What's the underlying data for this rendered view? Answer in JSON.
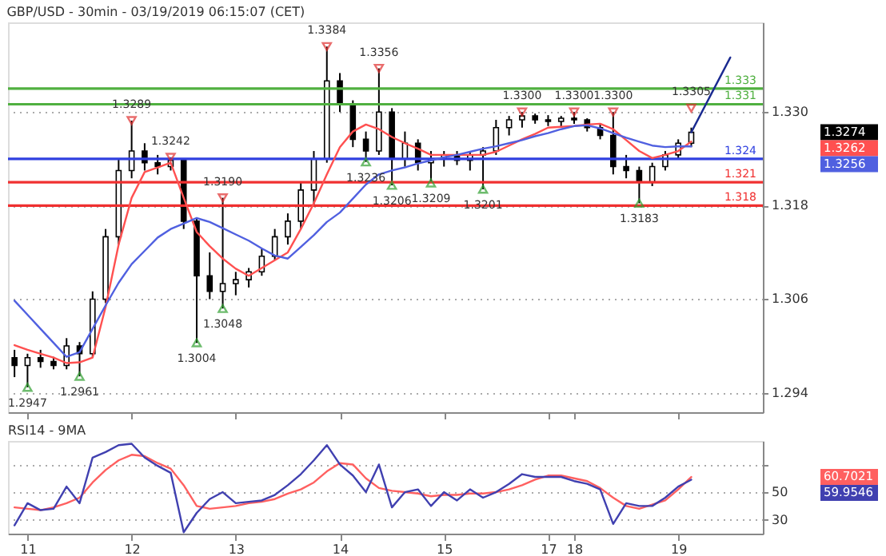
{
  "chart_data": [
    {
      "type": "candlestick",
      "title": "GBP/USD - 30min - 03/19/2019 06:15:07 (CET)",
      "categories": [
        null,
        "11",
        null,
        null,
        null,
        null,
        null,
        null,
        null,
        "12",
        null,
        null,
        null,
        null,
        null,
        null,
        null,
        "13",
        null,
        null,
        null,
        null,
        null,
        null,
        null,
        "14",
        null,
        null,
        null,
        null,
        null,
        null,
        null,
        "15",
        null,
        null,
        null,
        null,
        null,
        null,
        null,
        "17",
        null,
        "18",
        null,
        null,
        null,
        null,
        null,
        null,
        null,
        "19",
        null,
        null,
        null,
        null,
        null,
        null
      ],
      "ohlc": [
        [
          1.2985,
          1.2995,
          1.296,
          1.2975
        ],
        [
          1.2975,
          1.299,
          1.2947,
          1.2985
        ],
        [
          1.2985,
          1.2995,
          1.2972,
          1.298
        ],
        [
          1.298,
          1.2986,
          1.297,
          1.2975
        ],
        [
          1.2975,
          1.301,
          1.297,
          1.3
        ],
        [
          1.3,
          1.3005,
          1.2961,
          1.299
        ],
        [
          1.299,
          1.307,
          1.2985,
          1.306
        ],
        [
          1.306,
          1.315,
          1.3055,
          1.314
        ],
        [
          1.314,
          1.324,
          1.313,
          1.3225
        ],
        [
          1.3225,
          1.3289,
          1.3215,
          1.325
        ],
        [
          1.325,
          1.326,
          1.3225,
          1.3235
        ],
        [
          1.3235,
          1.3245,
          1.322,
          1.323
        ],
        [
          1.323,
          1.3242,
          1.3225,
          1.3238
        ],
        [
          1.3238,
          1.324,
          1.315,
          1.316
        ],
        [
          1.316,
          1.3165,
          1.3004,
          1.309
        ],
        [
          1.309,
          1.312,
          1.306,
          1.307
        ],
        [
          1.307,
          1.319,
          1.3048,
          1.308
        ],
        [
          1.308,
          1.3095,
          1.3065,
          1.3085
        ],
        [
          1.3085,
          1.31,
          1.3075,
          1.3095
        ],
        [
          1.3095,
          1.3125,
          1.309,
          1.3115
        ],
        [
          1.3115,
          1.315,
          1.311,
          1.314
        ],
        [
          1.314,
          1.317,
          1.313,
          1.316
        ],
        [
          1.316,
          1.321,
          1.315,
          1.32
        ],
        [
          1.32,
          1.325,
          1.318,
          1.324
        ],
        [
          1.324,
          1.3384,
          1.3235,
          1.334
        ],
        [
          1.334,
          1.335,
          1.33,
          1.331
        ],
        [
          1.331,
          1.3315,
          1.3255,
          1.3265
        ],
        [
          1.3265,
          1.3275,
          1.3236,
          1.325
        ],
        [
          1.325,
          1.3356,
          1.3245,
          1.33
        ],
        [
          1.33,
          1.3305,
          1.3206,
          1.324
        ],
        [
          1.324,
          1.3275,
          1.323,
          1.326
        ],
        [
          1.326,
          1.3265,
          1.3225,
          1.3235
        ],
        [
          1.3235,
          1.325,
          1.3209,
          1.324
        ],
        [
          1.324,
          1.325,
          1.323,
          1.3245
        ],
        [
          1.3245,
          1.325,
          1.3232,
          1.3238
        ],
        [
          1.3238,
          1.325,
          1.3225,
          1.3245
        ],
        [
          1.3245,
          1.3255,
          1.3201,
          1.325
        ],
        [
          1.325,
          1.329,
          1.3245,
          1.328
        ],
        [
          1.328,
          1.3295,
          1.327,
          1.329
        ],
        [
          1.329,
          1.33,
          1.328,
          1.3295
        ],
        [
          1.3295,
          1.3298,
          1.3285,
          1.329
        ],
        [
          1.329,
          1.3296,
          1.3282,
          1.3288
        ],
        [
          1.3288,
          1.3295,
          1.328,
          1.3292
        ],
        [
          1.3292,
          1.33,
          1.3285,
          1.329
        ],
        [
          1.329,
          1.3292,
          1.3275,
          1.328
        ],
        [
          1.328,
          1.3285,
          1.3265,
          1.327
        ],
        [
          1.327,
          1.33,
          1.322,
          1.323
        ],
        [
          1.323,
          1.3245,
          1.3215,
          1.3225
        ],
        [
          1.3225,
          1.323,
          1.3183,
          1.321
        ],
        [
          1.321,
          1.3235,
          1.3205,
          1.323
        ],
        [
          1.323,
          1.325,
          1.3225,
          1.3245
        ],
        [
          1.3245,
          1.3265,
          1.324,
          1.326
        ],
        [
          1.326,
          1.328,
          1.3255,
          1.3274
        ],
        null,
        null,
        null,
        null,
        null
      ],
      "series": [
        {
          "type": "line",
          "color": "#ff5050",
          "values": [
            1.3001,
            1.2995,
            1.299,
            1.2985,
            1.2978,
            1.2979,
            1.2985,
            1.305,
            1.313,
            1.319,
            1.3223,
            1.3229,
            1.3235,
            1.319,
            1.3146,
            1.3128,
            1.3112,
            1.3099,
            1.309,
            1.31,
            1.311,
            1.312,
            1.315,
            1.3183,
            1.322,
            1.3255,
            1.3275,
            1.3284,
            1.3278,
            1.3268,
            1.326,
            1.3253,
            1.3245,
            1.3245,
            1.3245,
            1.3245,
            1.3245,
            1.3249,
            1.3257,
            1.3265,
            1.3272,
            1.328,
            1.3281,
            1.3282,
            1.3284,
            1.3285,
            1.3278,
            1.3264,
            1.325,
            1.3241,
            1.3245,
            1.325,
            1.3262,
            null,
            null,
            null,
            null,
            null
          ]
        },
        {
          "type": "line",
          "color": "#5060e0",
          "values": [
            1.3058,
            1.304,
            1.3022,
            1.3004,
            1.2986,
            1.2992,
            1.3022,
            1.3052,
            1.3081,
            1.3105,
            1.3122,
            1.3139,
            1.315,
            1.3157,
            1.3164,
            1.3159,
            1.3151,
            1.3143,
            1.3135,
            1.3125,
            1.3116,
            1.3112,
            1.3127,
            1.3142,
            1.3159,
            1.3171,
            1.3189,
            1.3207,
            1.322,
            1.3225,
            1.3229,
            1.3234,
            1.3238,
            1.3242,
            1.3245,
            1.3249,
            1.3253,
            1.3256,
            1.326,
            1.3264,
            1.3269,
            1.3273,
            1.3278,
            1.3282,
            1.3283,
            1.3279,
            1.3273,
            1.3267,
            1.3262,
            1.3257,
            1.3255,
            1.3256,
            1.3256,
            null,
            null,
            null,
            null,
            null
          ]
        },
        {
          "type": "line",
          "color": "#1a2a90",
          "values": [
            null,
            null,
            null,
            null,
            null,
            null,
            null,
            null,
            null,
            null,
            null,
            null,
            null,
            null,
            null,
            null,
            null,
            null,
            null,
            null,
            null,
            null,
            null,
            null,
            null,
            null,
            null,
            null,
            null,
            null,
            null,
            null,
            null,
            null,
            null,
            null,
            null,
            null,
            null,
            null,
            null,
            null,
            null,
            null,
            null,
            null,
            null,
            null,
            null,
            null,
            null,
            null,
            1.3274,
            null,
            null,
            1.337,
            null,
            null
          ]
        },
        {
          "type": "scatter",
          "color": "#e03030",
          "marker": "triangle",
          "values": [
            null,
            null,
            null,
            null,
            null,
            null,
            null,
            null,
            null,
            1.3289,
            null,
            null,
            1.3242,
            null,
            null,
            null,
            1.319,
            null,
            null,
            null,
            null,
            null,
            null,
            null,
            1.3384,
            null,
            null,
            null,
            1.3356,
            null,
            null,
            null,
            null,
            null,
            null,
            null,
            null,
            null,
            null,
            1.33,
            null,
            null,
            null,
            1.33,
            null,
            null,
            1.33,
            null,
            null,
            null,
            null,
            null,
            1.3305,
            null,
            null,
            null,
            null,
            null
          ],
          "value_labels": [
            null,
            null,
            null,
            null,
            null,
            null,
            null,
            null,
            null,
            "1.3289",
            null,
            null,
            "1.3242",
            null,
            null,
            null,
            "1.3190",
            null,
            null,
            null,
            null,
            null,
            null,
            null,
            "1.3384",
            null,
            null,
            null,
            "1.3356",
            null,
            null,
            null,
            null,
            null,
            null,
            null,
            null,
            null,
            null,
            "1.3300",
            null,
            null,
            null,
            "1.3300",
            null,
            null,
            "1.3300",
            null,
            null,
            null,
            null,
            null,
            "1.3305",
            null,
            null,
            null,
            null,
            null
          ]
        },
        {
          "type": "scatter",
          "color": "#30a030",
          "marker": "triangle",
          "values": [
            null,
            1.2947,
            null,
            null,
            null,
            1.2961,
            null,
            null,
            null,
            null,
            null,
            null,
            null,
            null,
            1.3004,
            null,
            1.3048,
            null,
            null,
            null,
            null,
            null,
            null,
            null,
            null,
            null,
            null,
            1.3236,
            null,
            1.3206,
            null,
            null,
            1.3209,
            null,
            null,
            null,
            1.3201,
            null,
            null,
            null,
            null,
            null,
            null,
            null,
            null,
            null,
            null,
            null,
            1.3183,
            null,
            null,
            null,
            null,
            null,
            null,
            null,
            null,
            null
          ],
          "value_labels": [
            null,
            "1.2947",
            null,
            null,
            null,
            "1.2961",
            null,
            null,
            null,
            null,
            null,
            null,
            null,
            null,
            "1.3004",
            null,
            "1.3048",
            null,
            null,
            null,
            null,
            null,
            null,
            null,
            null,
            null,
            null,
            "1.3236",
            null,
            "1.3206",
            null,
            null,
            "1.3209",
            null,
            null,
            null,
            "1.3201",
            null,
            null,
            null,
            null,
            null,
            null,
            null,
            null,
            null,
            null,
            null,
            "1.3183",
            null,
            null,
            null,
            null,
            null,
            null,
            null,
            null,
            null
          ]
        }
      ],
      "ylim": [
        1.2915,
        1.3415
      ],
      "yticks": [
        {
          "value": 1.294,
          "label": "1.294"
        },
        {
          "value": 1.306,
          "label": "1.306"
        },
        {
          "value": 1.318,
          "label": "1.318"
        },
        {
          "value": 1.33,
          "label": "1.330"
        }
      ],
      "grid": "y",
      "tick_labels": "y",
      "ref_lines": [
        {
          "axis": "y",
          "value": 1.333,
          "label": "1.333",
          "color": "#50b040"
        },
        {
          "axis": "y",
          "value": 1.331,
          "label": "1.331",
          "color": "#50b040"
        },
        {
          "axis": "y",
          "value": 1.324,
          "label": "1.324",
          "color": "#3040e0"
        },
        {
          "axis": "y",
          "value": 1.321,
          "label": "1.321",
          "color": "#f03030"
        },
        {
          "axis": "y",
          "value": 1.318,
          "label": "1.318",
          "color": "#f03030"
        }
      ],
      "annotations": [
        "1.3274",
        "1.3262",
        "1.3256"
      ]
    },
    {
      "type": "line",
      "title": "RSI14 - 9MA",
      "categories": [
        null,
        "11",
        null,
        null,
        null,
        null,
        null,
        null,
        null,
        "12",
        null,
        null,
        null,
        null,
        null,
        null,
        null,
        "13",
        null,
        null,
        null,
        null,
        null,
        null,
        null,
        "14",
        null,
        null,
        null,
        null,
        null,
        null,
        null,
        "15",
        null,
        null,
        null,
        null,
        null,
        null,
        null,
        "17",
        null,
        "18",
        null,
        null,
        null,
        null,
        null,
        null,
        null,
        "19",
        null,
        null,
        null,
        null,
        null,
        null
      ],
      "series": [
        {
          "color": "#ff6060",
          "values": [
            39,
            38,
            37,
            39,
            42,
            46,
            57,
            66,
            73,
            77,
            76,
            71,
            67,
            55,
            40,
            38,
            39,
            40,
            42,
            43,
            45,
            49,
            52,
            57,
            65,
            71,
            70,
            60,
            53,
            51,
            50,
            49,
            47,
            48,
            48,
            49,
            49,
            50,
            52,
            55,
            59,
            62,
            62,
            60,
            58,
            53,
            46,
            40,
            38,
            41,
            44,
            52,
            61,
            null,
            null,
            null,
            null,
            null
          ]
        },
        {
          "color": "#4040b0",
          "values": [
            26,
            42,
            37,
            38,
            54,
            42,
            75,
            79,
            84,
            85,
            75,
            69,
            64,
            21,
            35,
            45,
            50,
            42,
            43,
            44,
            48,
            55,
            63,
            73,
            84,
            70,
            62,
            50,
            70,
            39,
            50,
            52,
            40,
            50,
            44,
            52,
            46,
            50,
            56,
            63,
            61,
            61,
            61,
            58,
            56,
            52,
            27,
            42,
            40,
            40,
            46,
            54,
            59,
            null,
            null,
            null,
            null,
            null
          ]
        }
      ],
      "ylim": [
        20,
        87
      ],
      "yticks": [
        30,
        50,
        {
          "value": 70,
          "label": null
        }
      ],
      "grid": "y",
      "annotations": [
        "60.7021",
        "59.9546"
      ]
    }
  ]
}
